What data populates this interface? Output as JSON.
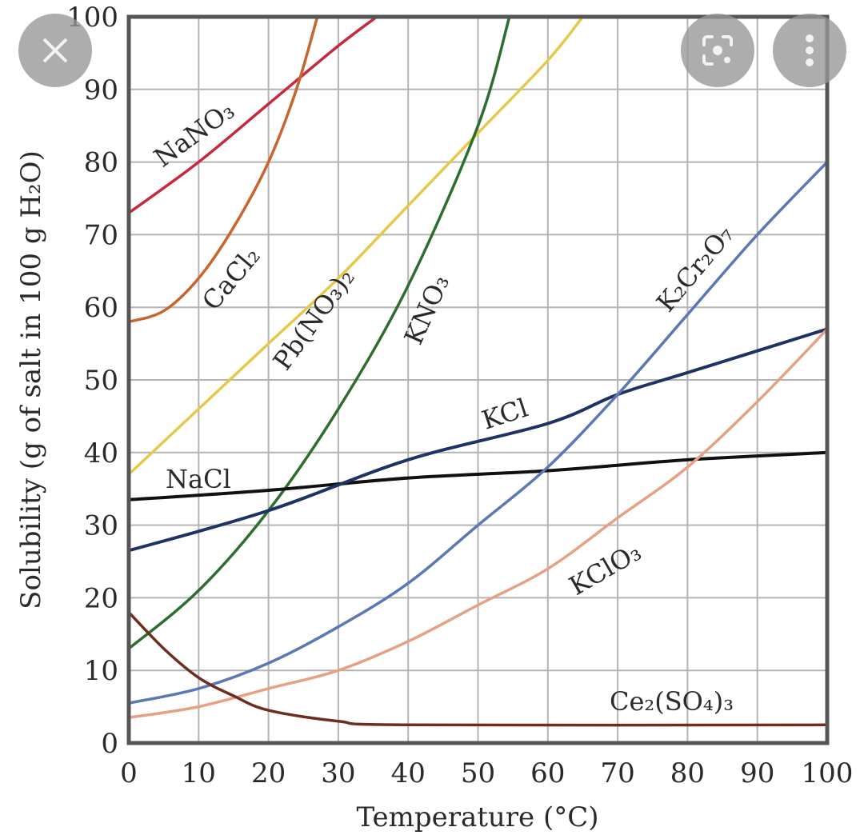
{
  "overlay": {
    "close_icon": "close-icon",
    "lens_icon": "lens-icon",
    "more_icon": "more-vertical-icon"
  },
  "chart_data": {
    "type": "line",
    "title": "",
    "xlabel": "Temperature (°C)",
    "ylabel": "Solubility (g of salt in 100 g H₂O)",
    "xlim": [
      0,
      100
    ],
    "ylim": [
      0,
      100
    ],
    "grid": true,
    "x_ticks": [
      "0",
      "10",
      "20",
      "30",
      "40",
      "50",
      "60",
      "70",
      "80",
      "90",
      "100"
    ],
    "y_ticks": [
      "0",
      "10",
      "20",
      "30",
      "40",
      "50",
      "60",
      "70",
      "80",
      "90",
      "100"
    ],
    "series": [
      {
        "name": "NaNO₃",
        "color": "#c8283c",
        "x": [
          0,
          10,
          20,
          30,
          35.5
        ],
        "y": [
          73,
          80,
          88,
          96,
          100
        ]
      },
      {
        "name": "CaCl₂",
        "color": "#c8642d",
        "x": [
          0,
          5,
          10,
          15,
          20,
          24,
          27
        ],
        "y": [
          58,
          59.5,
          64,
          71,
          80,
          90,
          100
        ]
      },
      {
        "name": "Pb(NO₃)₂",
        "color": "#e6c84b",
        "x": [
          0,
          10,
          20,
          30,
          40,
          50,
          60,
          65
        ],
        "y": [
          37,
          46,
          55,
          64,
          74,
          84,
          94,
          100
        ]
      },
      {
        "name": "KNO₃",
        "color": "#2d6e2d",
        "x": [
          0,
          10,
          20,
          30,
          40,
          50,
          54.5
        ],
        "y": [
          13,
          21,
          32,
          46,
          63,
          85,
          100
        ]
      },
      {
        "name": "NaCl",
        "color": "#111111",
        "x": [
          0,
          20,
          40,
          60,
          80,
          100
        ],
        "y": [
          33.5,
          34.8,
          36.5,
          37.5,
          39,
          40
        ]
      },
      {
        "name": "KCl",
        "color": "#1e3264",
        "x": [
          0,
          20,
          40,
          60,
          70,
          80,
          100
        ],
        "y": [
          26.5,
          32,
          39,
          44,
          48,
          51,
          57
        ]
      },
      {
        "name": "K₂Cr₂O₇",
        "color": "#5a78b4",
        "x": [
          0,
          10,
          20,
          30,
          40,
          50,
          60,
          70,
          80,
          90,
          100
        ],
        "y": [
          5.5,
          7.5,
          11,
          16,
          22,
          30,
          38,
          48,
          59,
          70,
          80
        ]
      },
      {
        "name": "KClO₃",
        "color": "#e6a082",
        "x": [
          0,
          10,
          20,
          30,
          40,
          50,
          60,
          70,
          80,
          90,
          100
        ],
        "y": [
          3.5,
          5,
          7.5,
          10,
          14,
          19,
          24,
          31,
          38,
          47,
          57
        ]
      },
      {
        "name": "Ce₂(SO₄)₃",
        "color": "#6e2d1e",
        "x": [
          0,
          5,
          10,
          15,
          20,
          30,
          40,
          100
        ],
        "y": [
          18,
          13,
          9,
          6.5,
          4.5,
          3,
          2.5,
          2.5
        ]
      }
    ]
  }
}
